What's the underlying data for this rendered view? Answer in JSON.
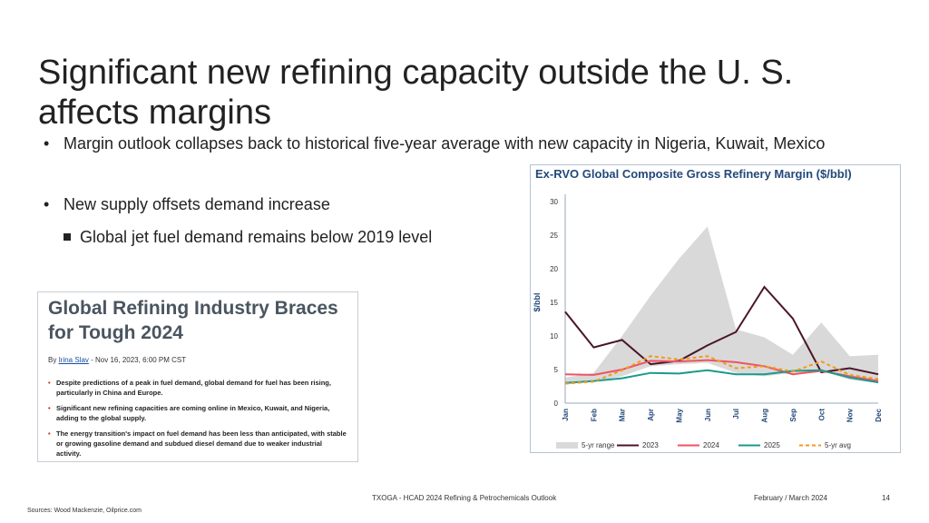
{
  "slide": {
    "title": "Significant new refining capacity outside the U. S. affects margins",
    "bullets": [
      "Margin outlook collapses back to historical five-year average with new capacity in Nigeria, Kuwait, Mexico",
      "New supply offsets demand increase"
    ],
    "sub_bullet": "Global jet fuel demand remains below 2019 level",
    "bullet_glyph": "•"
  },
  "article": {
    "title": "Global Refining Industry Braces for Tough 2024",
    "byline_prefix": "By ",
    "author": "Irina Slav",
    "byline_suffix": " - Nov 16, 2023, 6:00 PM CST",
    "points": [
      "Despite predictions of a peak in fuel demand, global demand for fuel has been rising, particularly in China and Europe.",
      "Significant new refining capacities are coming online in Mexico, Kuwait, and Nigeria, adding to the global supply.",
      "The energy transition's impact on fuel demand has been less than anticipated, with stable or growing gasoline demand and subdued diesel demand due to weaker industrial activity."
    ]
  },
  "footer": {
    "center": "TXOGA - HCAD 2024 Refining & Petrochemicals Outlook",
    "date": "February / March 2024",
    "page": "14",
    "sources": "Sources: Wood Mackenzie, Oilprice.com"
  },
  "chart_data": {
    "type": "area",
    "title": "Ex-RVO Global Composite Gross Refinery Margin ($/bbl)",
    "ylabel": "$/bbl",
    "xlabel": "",
    "categories": [
      "Jan",
      "Feb",
      "Mar",
      "Apr",
      "May",
      "Jun",
      "Jul",
      "Aug",
      "Sep",
      "Oct",
      "Nov",
      "Dec"
    ],
    "ylim": [
      0,
      30
    ],
    "yticks": [
      0,
      5,
      10,
      15,
      20,
      25,
      30
    ],
    "grid": false,
    "legend_position": "bottom",
    "range_band": {
      "name": "5-yr range",
      "color": "#d9d9d9",
      "low": [
        2.8,
        3.2,
        4.0,
        5.5,
        5.8,
        6.0,
        4.5,
        4.0,
        4.5,
        4.8,
        3.5,
        3.0
      ],
      "high": [
        3.8,
        4.5,
        10.0,
        16.0,
        21.5,
        26.3,
        11.0,
        9.8,
        7.2,
        12.0,
        7.0,
        7.2
      ]
    },
    "series": [
      {
        "name": "2023",
        "color": "#4a1528",
        "dash": false,
        "values": [
          13.6,
          8.3,
          9.4,
          5.8,
          6.3,
          8.6,
          10.6,
          17.3,
          12.6,
          4.6,
          5.2,
          4.3
        ]
      },
      {
        "name": "2024",
        "color": "#ef5363",
        "dash": false,
        "values": [
          4.3,
          4.2,
          5.0,
          6.3,
          6.2,
          6.4,
          6.1,
          5.5,
          4.3,
          4.8,
          4.0,
          3.3
        ]
      },
      {
        "name": "2025",
        "color": "#1a9a8e",
        "dash": false,
        "values": [
          3.0,
          3.3,
          3.7,
          4.5,
          4.4,
          4.9,
          4.3,
          4.3,
          4.8,
          4.9,
          3.8,
          3.1
        ]
      },
      {
        "name": "5-yr avg",
        "color": "#f39a1a",
        "dash": true,
        "values": [
          2.9,
          3.2,
          4.9,
          7.0,
          6.5,
          7.0,
          5.2,
          5.5,
          4.7,
          6.2,
          4.2,
          3.6
        ]
      }
    ]
  }
}
